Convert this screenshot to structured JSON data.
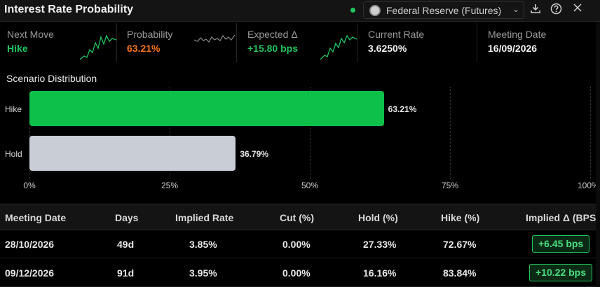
{
  "header": {
    "title": "Interest Rate Probability",
    "source_label": "Federal Reserve (Futures)",
    "icons": [
      "download-icon",
      "help-icon",
      "close-icon"
    ],
    "live_color": "#22c55e"
  },
  "metrics": [
    {
      "label": "Next Move",
      "value": "Hike",
      "color": "#22c55e",
      "sparkline": "green-up"
    },
    {
      "label": "Probability",
      "value": "63.21%",
      "color": "#f97316",
      "sparkline": "grey-flat"
    },
    {
      "label": "Expected Δ",
      "value": "+15.80 bps",
      "color": "#22c55e",
      "sparkline": "green-up"
    },
    {
      "label": "Current Rate",
      "value": "3.6250%",
      "color": "#f2f2f2"
    },
    {
      "label": "Meeting Date",
      "value": "16/09/2026",
      "color": "#f2f2f2"
    }
  ],
  "distribution": {
    "title": "Scenario Distribution",
    "ticks": [
      "0%",
      "25%",
      "50%",
      "75%",
      "100%"
    ]
  },
  "chart_data": {
    "type": "bar",
    "orientation": "horizontal",
    "categories": [
      "Hike",
      "Hold"
    ],
    "values": [
      63.21,
      36.79
    ],
    "value_labels": [
      "63.21%",
      "36.79%"
    ],
    "colors": [
      "#0cc04a",
      "#c9cdd6"
    ],
    "xlim": [
      0,
      100
    ],
    "grid": true
  },
  "table": {
    "headers": [
      "Meeting Date",
      "Days",
      "Implied Rate",
      "Cut (%)",
      "Hold (%)",
      "Hike (%)",
      "Implied Δ (BPS"
    ],
    "rows": [
      [
        "28/10/2026",
        "49d",
        "3.85%",
        "0.00%",
        "27.33%",
        "72.67%",
        "+6.45 bps"
      ],
      [
        "09/12/2026",
        "91d",
        "3.95%",
        "0.00%",
        "16.16%",
        "83.84%",
        "+10.22 bps"
      ]
    ]
  }
}
